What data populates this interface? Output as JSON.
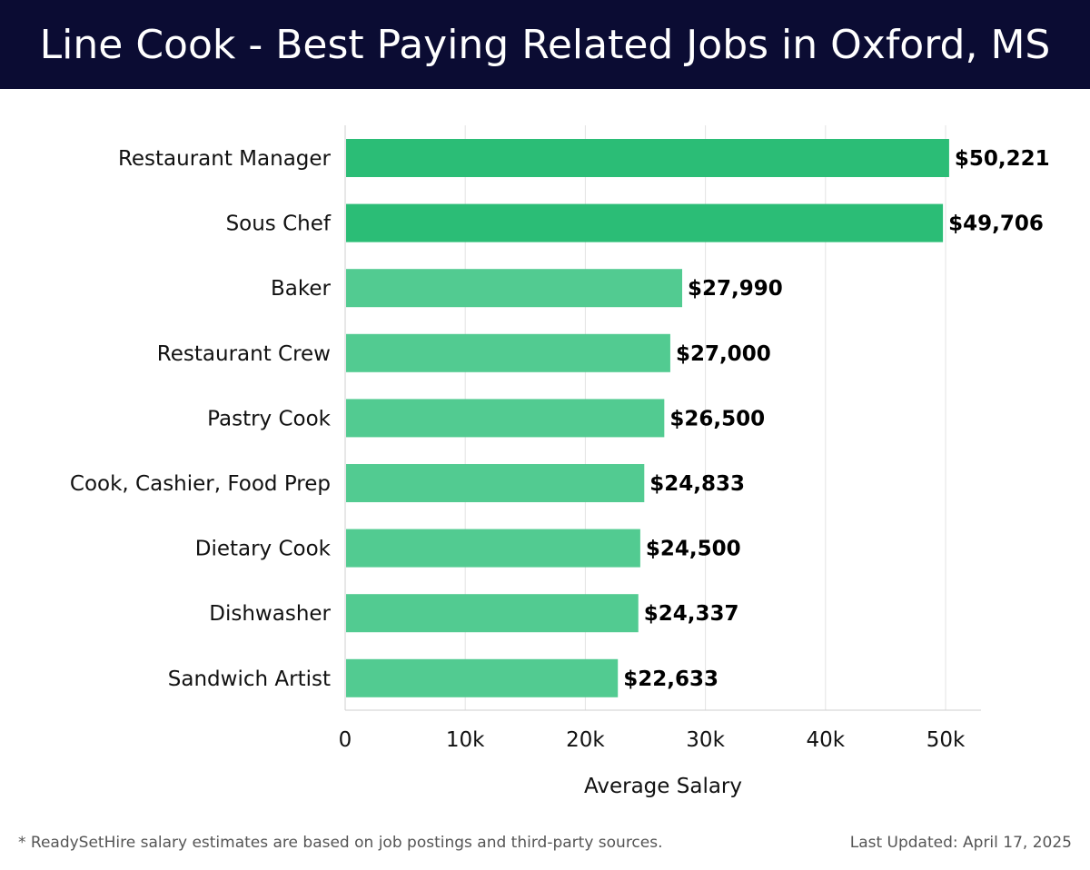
{
  "header": {
    "title": "Line Cook - Best Paying Related Jobs in Oxford, MS"
  },
  "chart_data": {
    "type": "bar",
    "orientation": "horizontal",
    "title": "Line Cook - Best Paying Related Jobs in Oxford, MS",
    "xlabel": "Average Salary",
    "ylabel": "",
    "categories": [
      "Restaurant Manager",
      "Sous Chef",
      "Baker",
      "Restaurant Crew",
      "Pastry Cook",
      "Cook, Cashier, Food Prep",
      "Dietary Cook",
      "Dishwasher",
      "Sandwich Artist"
    ],
    "values": [
      50221,
      49706,
      27990,
      27000,
      26500,
      24833,
      24500,
      24337,
      22633
    ],
    "value_labels": [
      "$50,221",
      "$49,706",
      "$27,990",
      "$27,000",
      "$26,500",
      "$24,833",
      "$24,500",
      "$24,337",
      "$22,633"
    ],
    "xlim": [
      0,
      53000
    ],
    "ticks": [
      0,
      10000,
      20000,
      30000,
      40000,
      50000
    ],
    "tick_labels": [
      "0",
      "10k",
      "20k",
      "30k",
      "40k",
      "50k"
    ],
    "grid": true,
    "colors": {
      "top": "#2bbd76",
      "rest": "#52cb91",
      "grid": "#e3e3e3"
    }
  },
  "footer": {
    "note": "* ReadySetHire salary estimates are based on job postings and third-party sources.",
    "updated": "Last Updated: April 17, 2025"
  }
}
